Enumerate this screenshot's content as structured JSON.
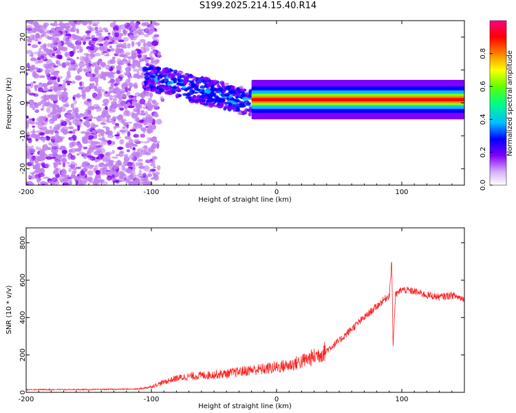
{
  "title": "S199.2025.214.15.40.R14",
  "chart_data": [
    {
      "type": "heatmap",
      "xlabel": "Height of straight line (km)",
      "ylabel": "Frequency (Hz)",
      "colorbar_label": "Normalized spectral amplitude",
      "xlim": [
        -200,
        150
      ],
      "ylim": [
        -25,
        25
      ],
      "xticks": [
        -200,
        -100,
        0,
        100
      ],
      "yticks": [
        -20,
        -10,
        0,
        10,
        20
      ],
      "colorbar_ticks": [
        "0.0",
        "0.2",
        "0.4",
        "0.6",
        "0.8"
      ],
      "colorbar_range": [
        0,
        1
      ],
      "colormap": [
        "#f2e6fa",
        "#c080f0",
        "#8000ff",
        "#0000ff",
        "#00c0ff",
        "#00ff80",
        "#80ff00",
        "#ffff00",
        "#ff8000",
        "#ff0000",
        "#ff0080"
      ],
      "features": [
        {
          "region": "broadband noise",
          "x": [
            -200,
            -95
          ],
          "freq": [
            -25,
            25
          ],
          "amplitude": 0.1
        },
        {
          "region": "descending trace",
          "x": [
            -105,
            -20
          ],
          "freq_start": 8,
          "freq_end": 0,
          "amplitude": 0.3
        },
        {
          "region": "carrier line",
          "x": [
            -20,
            150
          ],
          "freq": 1,
          "amplitude": 0.9
        }
      ]
    },
    {
      "type": "line",
      "xlabel": "Height of straight line (km)",
      "ylabel": "SNR (10 * v/v)",
      "xlim": [
        -200,
        150
      ],
      "ylim": [
        0,
        880
      ],
      "xticks": [
        -200,
        -100,
        0,
        100
      ],
      "yticks": [
        0,
        200,
        400,
        600,
        800
      ],
      "line_color": "#ff2020",
      "series": [
        {
          "x": [
            -200,
            -150,
            -110,
            -100,
            -90,
            -80,
            -70,
            -60,
            -50,
            -40,
            -30,
            -20,
            -10,
            0,
            10,
            20,
            30,
            40,
            50,
            60,
            70,
            80,
            85,
            90,
            92,
            93,
            95,
            100,
            110,
            120,
            130,
            140,
            150
          ],
          "values": [
            15,
            15,
            18,
            30,
            55,
            75,
            85,
            90,
            95,
            100,
            110,
            120,
            125,
            135,
            145,
            165,
            190,
            225,
            275,
            340,
            400,
            460,
            490,
            520,
            700,
            250,
            520,
            550,
            540,
            520,
            510,
            520,
            500
          ]
        }
      ]
    }
  ]
}
